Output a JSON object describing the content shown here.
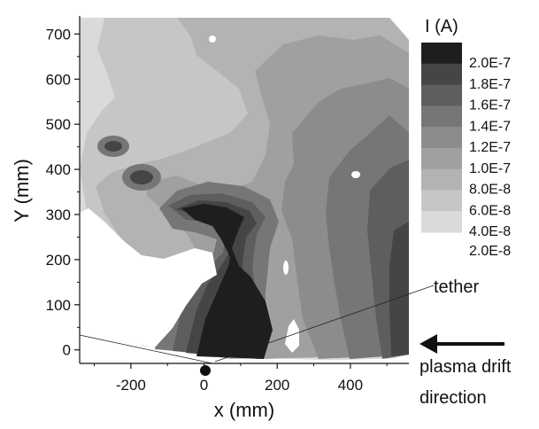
{
  "chart_data": {
    "type": "heatmap",
    "title": "",
    "xlabel": "x (mm)",
    "ylabel": "Y (mm)",
    "xlim": [
      -340,
      560
    ],
    "ylim": [
      -30,
      740
    ],
    "x_ticks": [
      -200,
      0,
      200,
      400
    ],
    "y_ticks": [
      0,
      100,
      200,
      300,
      400,
      500,
      600,
      700
    ],
    "x_tick_labels": [
      "-200",
      "0",
      "200",
      "400"
    ],
    "y_tick_labels": [
      "0",
      "100",
      "200",
      "300",
      "400",
      "500",
      "600",
      "700"
    ],
    "colorbar": {
      "title": "I (A)",
      "levels": [
        "2.0E-7",
        "1.8E-7",
        "1.6E-7",
        "1.4E-7",
        "1.2E-7",
        "1.0E-7",
        "8.0E-8",
        "6.0E-8",
        "4.0E-8",
        "2.0E-8"
      ],
      "colors": [
        "#1e1e1e",
        "#454545",
        "#5e5e5e",
        "#767676",
        "#8c8c8c",
        "#a0a0a0",
        "#b3b3b3",
        "#c6c6c6",
        "#dadada"
      ]
    },
    "annotations": [
      {
        "text": "tether",
        "x": 215,
        "y": 25
      },
      {
        "text": "plasma drift",
        "x": 590,
        "y": 10
      },
      {
        "text": "direction",
        "x": 590,
        "y": -40
      }
    ],
    "tether_position": {
      "x": -10,
      "y": -65
    }
  },
  "colors": {
    "background": "#ffffff",
    "axis": "#111111"
  }
}
